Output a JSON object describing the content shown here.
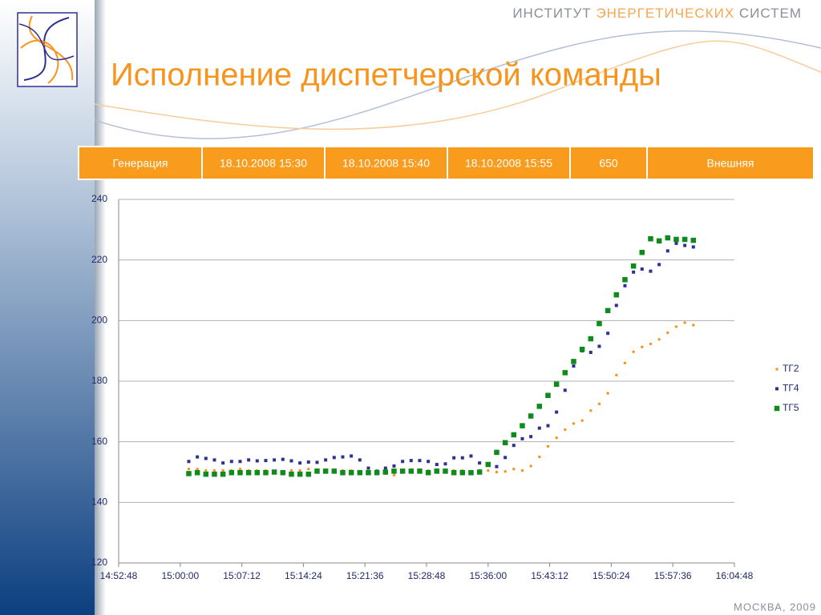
{
  "header": {
    "brand": [
      "ИНСТИТУТ",
      "ЭНЕРГЕТИЧЕСКИХ",
      "СИСТЕМ"
    ],
    "title": "Исполнение диспетчерской команды"
  },
  "table": {
    "rows": [
      [
        "Генерация",
        "18.10.2008 15:30",
        "18.10.2008 15:40",
        "18.10.2008 15:55",
        "650",
        "Внешняя"
      ]
    ]
  },
  "footer": "МОСКВА, 2009",
  "chart_data": {
    "type": "scatter",
    "x": [
      "15:01:00",
      "15:02:00",
      "15:03:00",
      "15:04:00",
      "15:05:00",
      "15:06:00",
      "15:07:00",
      "15:08:00",
      "15:09:00",
      "15:10:00",
      "15:11:00",
      "15:12:00",
      "15:13:00",
      "15:14:00",
      "15:15:00",
      "15:16:00",
      "15:17:00",
      "15:18:00",
      "15:19:00",
      "15:20:00",
      "15:21:00",
      "15:22:00",
      "15:23:00",
      "15:24:00",
      "15:25:00",
      "15:26:00",
      "15:27:00",
      "15:28:00",
      "15:29:00",
      "15:30:00",
      "15:31:00",
      "15:32:00",
      "15:33:00",
      "15:34:00",
      "15:35:00",
      "15:36:00",
      "15:37:00",
      "15:38:00",
      "15:39:00",
      "15:40:00",
      "15:41:00",
      "15:42:00",
      "15:43:00",
      "15:44:00",
      "15:45:00",
      "15:46:00",
      "15:47:00",
      "15:48:00",
      "15:49:00",
      "15:50:00",
      "15:51:00",
      "15:52:00",
      "15:53:00",
      "15:54:00",
      "15:55:00",
      "15:56:00",
      "15:57:00",
      "15:58:00",
      "15:59:00",
      "16:00:00"
    ],
    "series": [
      {
        "name": "ТГ2",
        "color": "#f7941d",
        "marker": "circle",
        "values": [
          151,
          151,
          150.5,
          150.5,
          150.5,
          150.5,
          151,
          150.5,
          150.5,
          150.5,
          150,
          149.5,
          150.5,
          150.5,
          151,
          150.5,
          150.5,
          150.5,
          150.5,
          150.5,
          150,
          150,
          150,
          149.5,
          149,
          150.5,
          150,
          150.5,
          150.5,
          150,
          150.5,
          150.5,
          150.5,
          150,
          150.5,
          150.5,
          150,
          150.2,
          151,
          150.5,
          152,
          155,
          158.5,
          161.3,
          164,
          166,
          167,
          170.3,
          172.5,
          176,
          182,
          186,
          189.7,
          191.3,
          192.3,
          193.8,
          196,
          198,
          199.3,
          198.5
        ]
      },
      {
        "name": "ТГ4",
        "color": "#2e3192",
        "marker": "square",
        "values": [
          153.5,
          155,
          154.5,
          154,
          153,
          153.5,
          153.5,
          154,
          153.7,
          153.8,
          154,
          154.2,
          153.7,
          153,
          153.3,
          153.2,
          154,
          154.8,
          155,
          155.3,
          154,
          151.3,
          150.3,
          151.3,
          152,
          153.5,
          153.8,
          153.8,
          153.5,
          152.5,
          152.7,
          154.7,
          154.7,
          155.3,
          153,
          152.5,
          151.8,
          154.8,
          158.8,
          161,
          161.7,
          164.5,
          165.3,
          169.8,
          177,
          185,
          190,
          189.5,
          191.5,
          195.8,
          205,
          211.5,
          216,
          217,
          216.3,
          218.5,
          223,
          225.5,
          224.8,
          224.3
        ]
      },
      {
        "name": "ТГ5",
        "color": "#0f8a1c",
        "marker": "big-square",
        "values": [
          149.5,
          149.8,
          149.3,
          149.3,
          149.3,
          149.8,
          149.8,
          149.8,
          149.8,
          149.8,
          150,
          149.8,
          149.3,
          149.3,
          149.3,
          150.3,
          150.3,
          150.3,
          149.8,
          149.8,
          149.8,
          149.8,
          149.8,
          150,
          150.3,
          150.3,
          150.3,
          150.3,
          149.8,
          150.3,
          150.3,
          149.8,
          149.8,
          149.8,
          150,
          152.5,
          156.5,
          159.7,
          162.3,
          165.3,
          168.5,
          171.7,
          175.3,
          179,
          182.8,
          186.5,
          190.5,
          194,
          199,
          203.3,
          208.5,
          213.5,
          218,
          222.5,
          227,
          226.3,
          227.3,
          226.8,
          226.8,
          226.5
        ]
      }
    ],
    "xlim": [
      "14:52:48",
      "16:04:48"
    ],
    "xticks": [
      "14:52:48",
      "15:00:00",
      "15:07:12",
      "15:14:24",
      "15:21:36",
      "15:28:48",
      "15:36:00",
      "15:43:12",
      "15:50:24",
      "15:57:36",
      "16:04:48"
    ],
    "ylim": [
      120,
      240
    ],
    "yticks": [
      120,
      140,
      160,
      180,
      200,
      220,
      240
    ],
    "grid": true,
    "legend": "right"
  }
}
